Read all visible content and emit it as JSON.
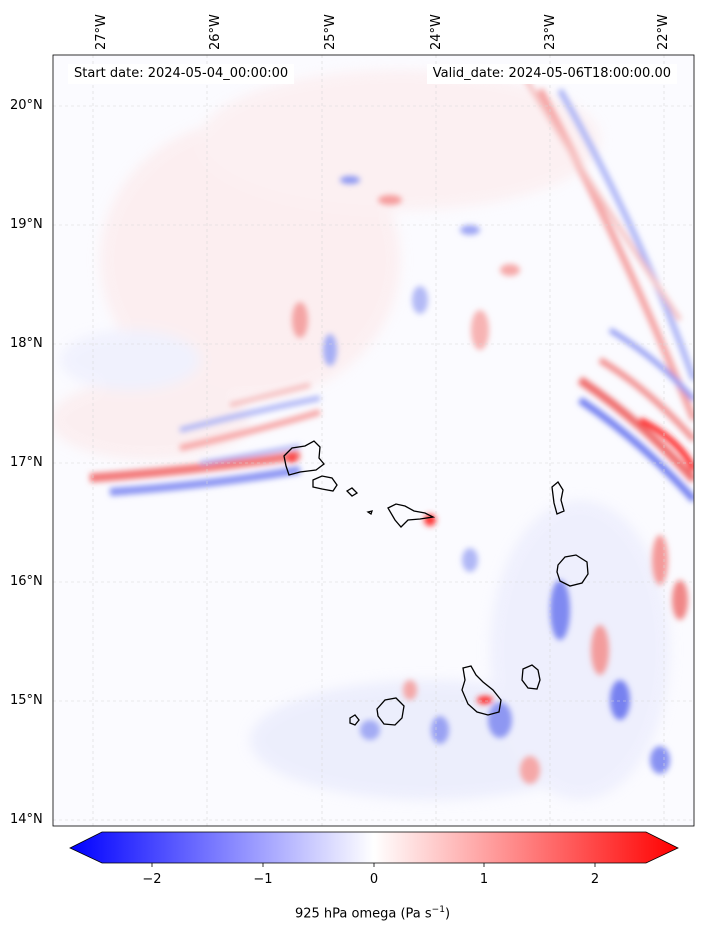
{
  "header": {
    "start_date": "Start date: 2024-05-04_00:00:00",
    "valid_date": "Valid_date: 2024-05-06T18:00:00.00"
  },
  "lat_labels": [
    "20°N",
    "19°N",
    "18°N",
    "17°N",
    "16°N",
    "15°N",
    "14°N"
  ],
  "lon_labels": [
    "27°W",
    "26°W",
    "25°W",
    "24°W",
    "23°W",
    "22°W"
  ],
  "colorbar": {
    "ticks": [
      "−2",
      "−1",
      "0",
      "1",
      "2"
    ],
    "label": "925 hPa omega (Pa s",
    "label_sup": "−1",
    "label_end": ")",
    "range": [
      -2.5,
      2.5
    ],
    "cmap": "bwr",
    "extend": "both"
  },
  "colors": {
    "negative": "#0000ff",
    "neutral": "#ffffff",
    "positive": "#ff0000",
    "coastline": "#000000",
    "grid": "#cccccc"
  },
  "grid": true
}
